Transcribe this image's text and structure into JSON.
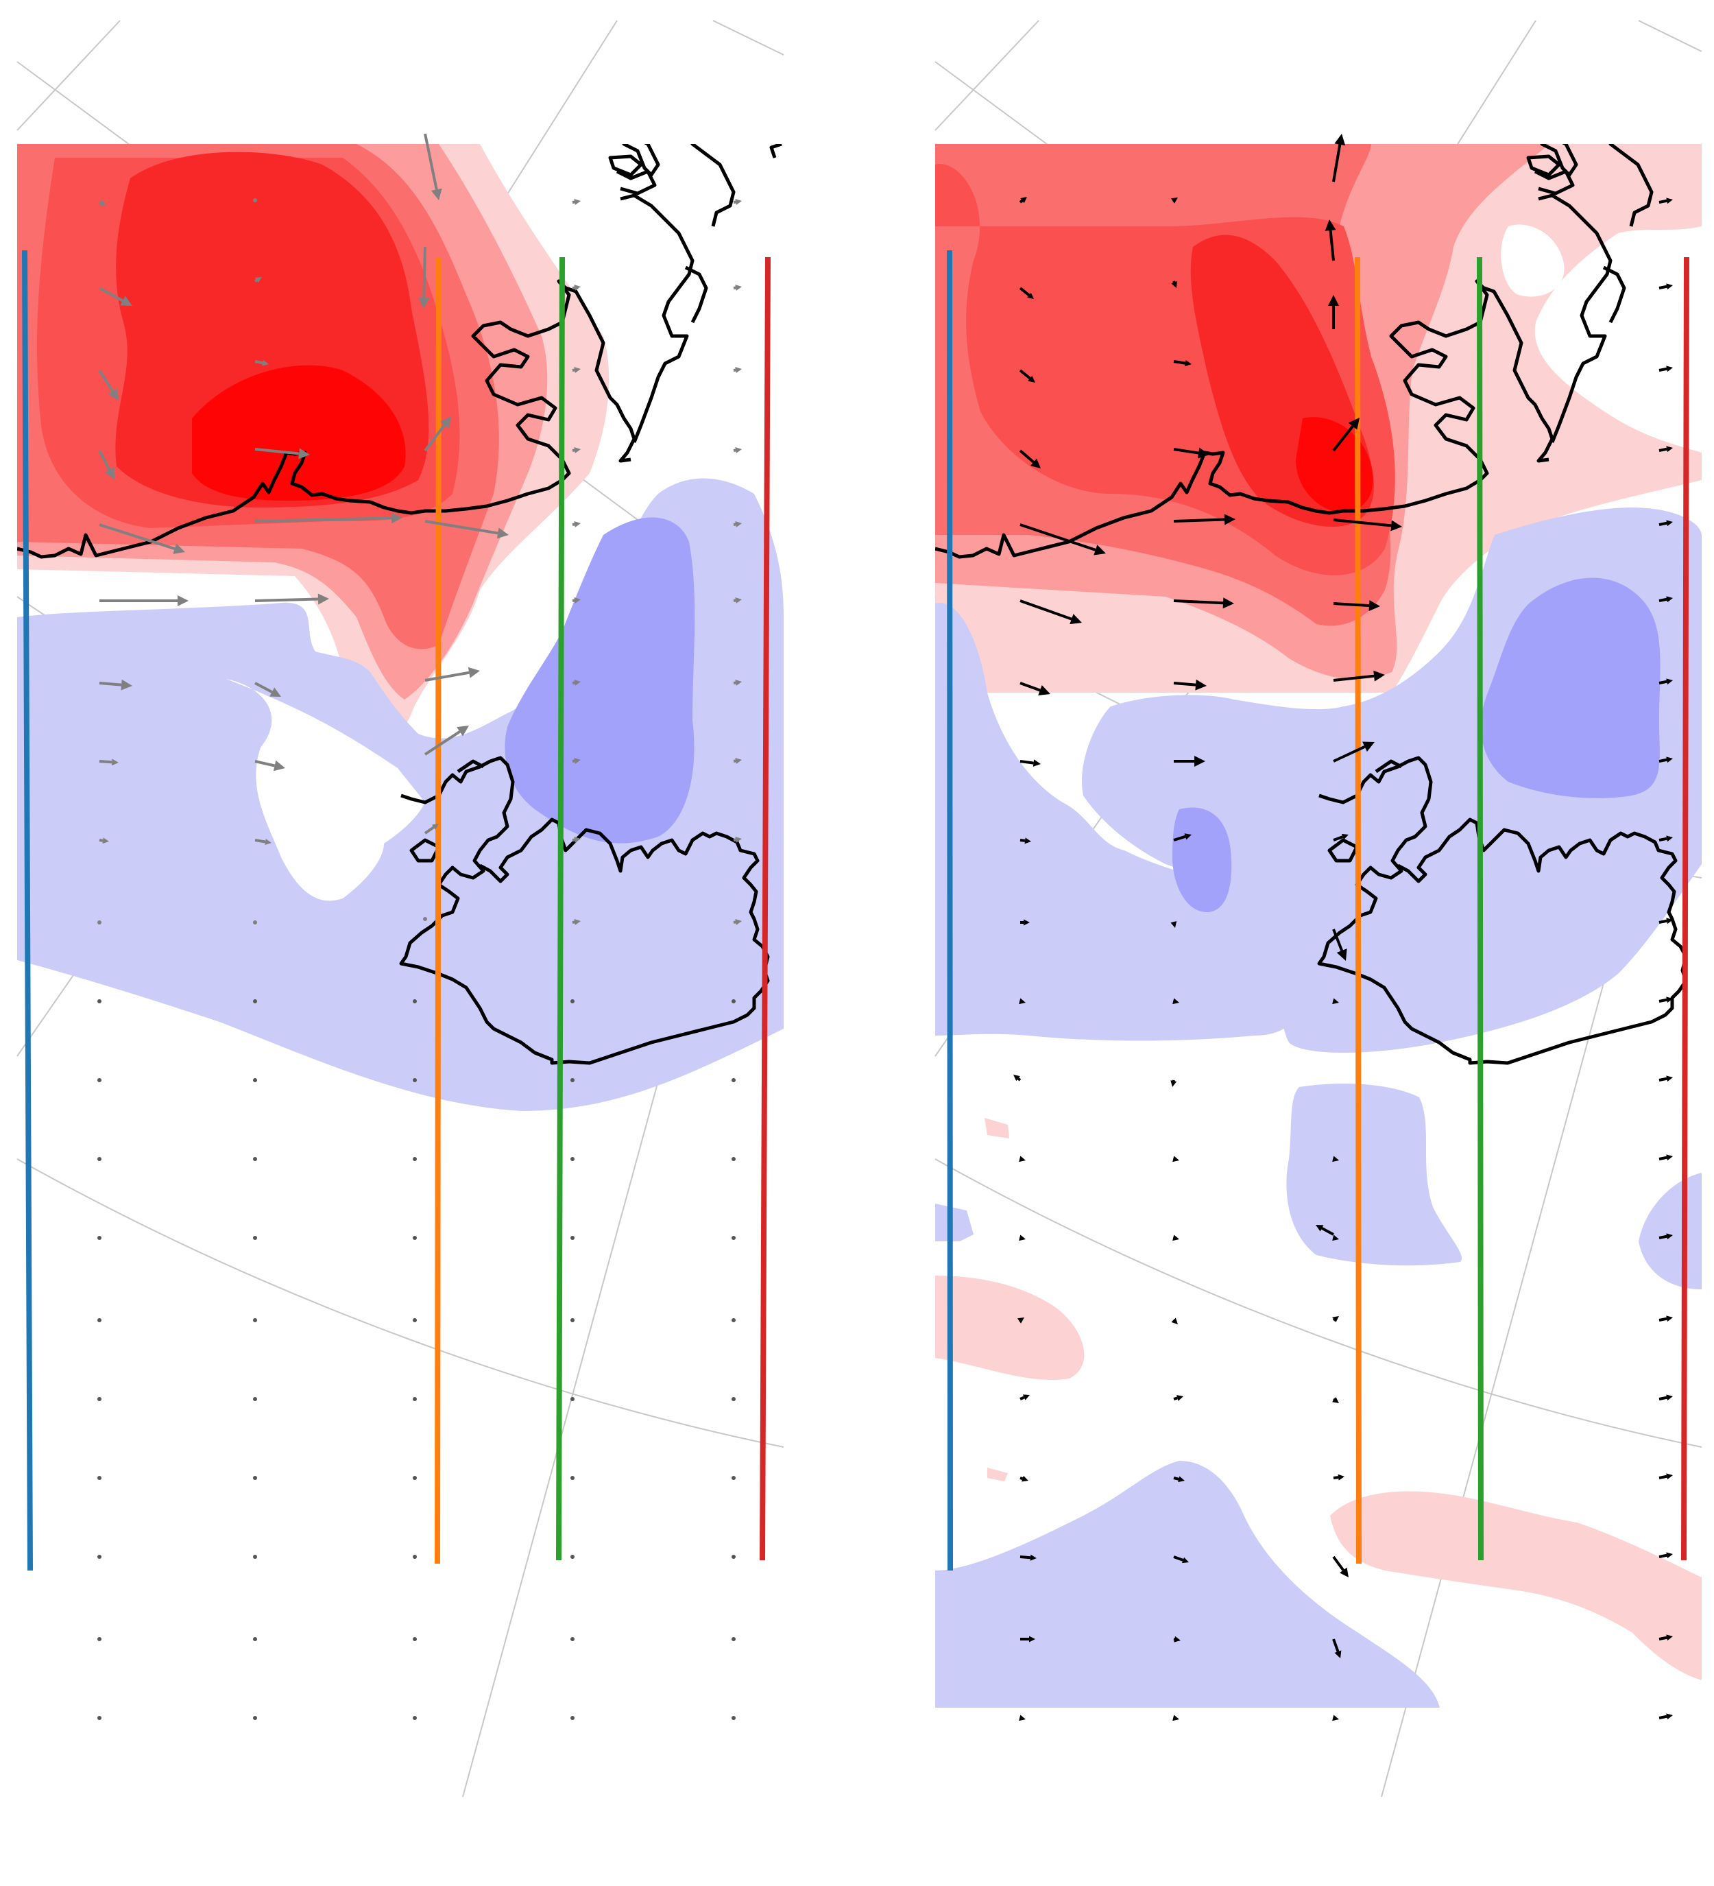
{
  "figure": {
    "panels": [
      {
        "id": "left-panel",
        "arrow_color": "#808080",
        "vectors": [
          [
            145,
            295,
            10,
            4
          ],
          [
            372,
            292,
            4,
            0
          ],
          [
            620,
            195,
            20,
            97
          ],
          [
            145,
            420,
            48,
            26
          ],
          [
            372,
            410,
            10,
            -6
          ],
          [
            620,
            360,
            -2,
            90
          ],
          [
            145,
            540,
            28,
            44
          ],
          [
            372,
            527,
            20,
            4
          ],
          [
            145,
            657,
            22,
            42
          ],
          [
            372,
            655,
            80,
            8
          ],
          [
            620,
            657,
            38,
            -50
          ],
          [
            145,
            765,
            125,
            40
          ],
          [
            372,
            760,
            215,
            -5
          ],
          [
            620,
            760,
            122,
            20
          ],
          [
            145,
            876,
            130,
            0
          ],
          [
            372,
            876,
            108,
            -3
          ],
          [
            145,
            996,
            48,
            4
          ],
          [
            372,
            996,
            38,
            20
          ],
          [
            620,
            992,
            80,
            -14
          ],
          [
            145,
            1110,
            28,
            2
          ],
          [
            372,
            1110,
            44,
            10
          ],
          [
            620,
            1100,
            64,
            -42
          ],
          [
            145,
            1225,
            14,
            2
          ],
          [
            372,
            1225,
            24,
            4
          ],
          [
            620,
            1215,
            20,
            -14
          ],
          [
            145,
            1345,
            4,
            2
          ],
          [
            372,
            1345,
            4,
            0
          ],
          [
            620,
            1340,
            3,
            -3
          ]
        ]
      },
      {
        "id": "right-panel",
        "arrow_color": "#000000",
        "vectors": [
          [
            1488,
            295,
            10,
            -8
          ],
          [
            1712,
            292,
            6,
            -4
          ],
          [
            1945,
            265,
            12,
            -70
          ],
          [
            1488,
            420,
            20,
            16
          ],
          [
            1712,
            410,
            4,
            10
          ],
          [
            1945,
            380,
            -6,
            -60
          ],
          [
            1488,
            540,
            22,
            18
          ],
          [
            1712,
            527,
            26,
            4
          ],
          [
            1945,
            480,
            0,
            -50
          ],
          [
            1488,
            657,
            30,
            26
          ],
          [
            1712,
            655,
            52,
            8
          ],
          [
            1945,
            657,
            38,
            -48
          ],
          [
            1488,
            765,
            125,
            42
          ],
          [
            1712,
            760,
            90,
            -3
          ],
          [
            1945,
            758,
            100,
            10
          ],
          [
            1488,
            876,
            90,
            32
          ],
          [
            1712,
            876,
            88,
            4
          ],
          [
            1945,
            880,
            68,
            4
          ],
          [
            1488,
            996,
            44,
            16
          ],
          [
            1712,
            996,
            48,
            4
          ],
          [
            1945,
            992,
            75,
            -8
          ],
          [
            1488,
            1110,
            30,
            4
          ],
          [
            1712,
            1110,
            46,
            0
          ],
          [
            1945,
            1110,
            60,
            -28
          ],
          [
            1488,
            1225,
            16,
            2
          ],
          [
            1712,
            1225,
            26,
            -8
          ],
          [
            1945,
            1225,
            22,
            -8
          ],
          [
            1488,
            1345,
            14,
            0
          ],
          [
            1712,
            1345,
            2,
            8
          ],
          [
            1945,
            1355,
            18,
            46
          ],
          [
            1488,
            1575,
            -10,
            -8
          ],
          [
            1712,
            1575,
            -2,
            10
          ],
          [
            1945,
            1800,
            -26,
            -14
          ],
          [
            1488,
            1925,
            6,
            -4
          ],
          [
            1712,
            1925,
            6,
            6
          ],
          [
            1945,
            1925,
            8,
            -6
          ],
          [
            1488,
            2040,
            14,
            -6
          ],
          [
            1712,
            2040,
            14,
            -4
          ],
          [
            1945,
            2040,
            8,
            6
          ],
          [
            1488,
            2155,
            12,
            4
          ],
          [
            1712,
            2155,
            16,
            4
          ],
          [
            1945,
            2155,
            16,
            -2
          ],
          [
            1488,
            2270,
            24,
            2
          ],
          [
            1712,
            2270,
            22,
            8
          ],
          [
            1945,
            2270,
            22,
            30
          ],
          [
            1488,
            2390,
            22,
            0
          ],
          [
            1712,
            2390,
            10,
            2
          ],
          [
            1945,
            2390,
            10,
            28
          ]
        ]
      }
    ]
  }
}
